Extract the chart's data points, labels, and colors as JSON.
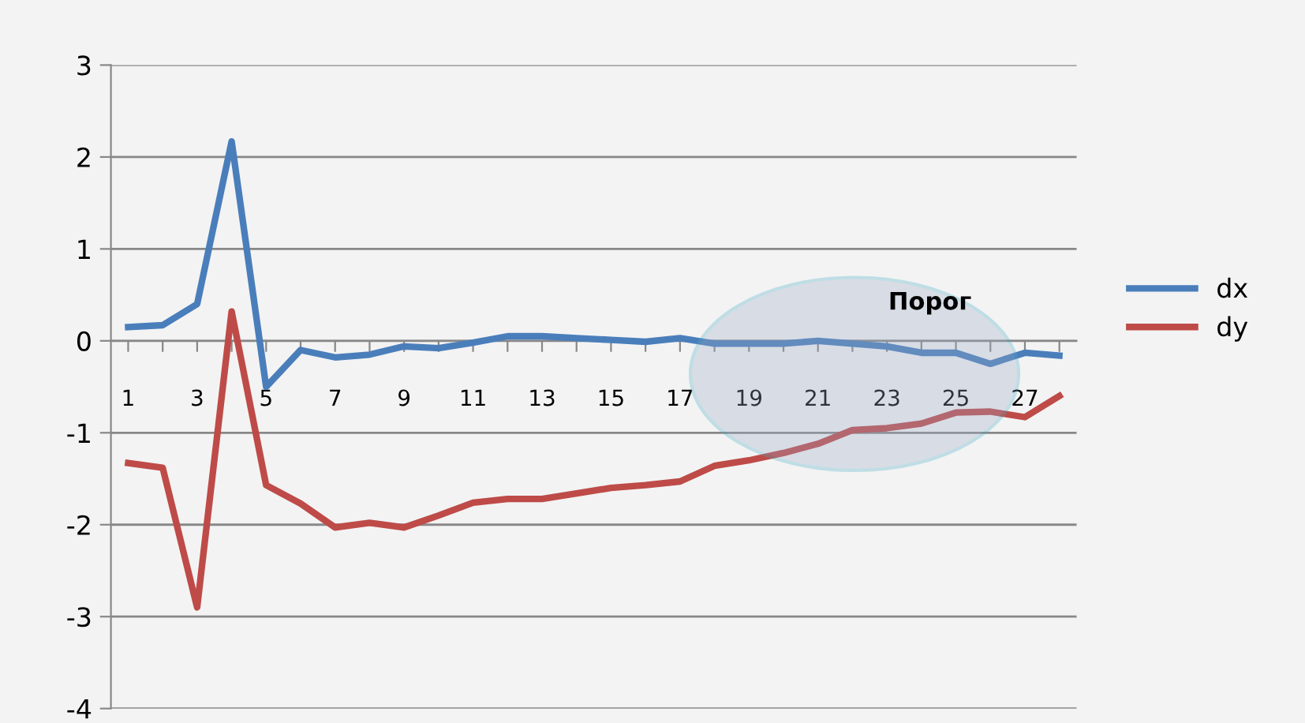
{
  "chart_data": {
    "type": "line",
    "categories": [
      "1",
      null,
      "3",
      null,
      "5",
      null,
      "7",
      null,
      "9",
      null,
      "11",
      null,
      "13",
      null,
      "15",
      null,
      "17",
      null,
      "19",
      null,
      "21",
      null,
      "23",
      null,
      "25",
      null,
      "27",
      null
    ],
    "series": [
      {
        "name": "dx",
        "color": "#4a7ebb",
        "values": [
          0.15,
          0.17,
          0.4,
          2.17,
          -0.5,
          -0.1,
          -0.18,
          -0.15,
          -0.06,
          -0.08,
          -0.02,
          0.05,
          0.05,
          0.03,
          0.01,
          -0.01,
          0.03,
          -0.03,
          -0.03,
          -0.03,
          0.0,
          -0.03,
          -0.06,
          -0.13,
          -0.13,
          -0.25,
          -0.13,
          -0.16
        ]
      },
      {
        "name": "dy",
        "color": "#be4b48",
        "values": [
          -1.33,
          -1.38,
          -2.9,
          0.32,
          -1.57,
          -1.77,
          -2.03,
          -1.98,
          -2.03,
          -1.9,
          -1.76,
          -1.72,
          -1.72,
          -1.66,
          -1.6,
          -1.57,
          -1.53,
          -1.36,
          -1.3,
          -1.22,
          -1.12,
          -0.97,
          -0.95,
          -0.9,
          -0.78,
          -0.77,
          -0.83,
          -0.6
        ]
      }
    ],
    "ylim": [
      -4,
      3
    ],
    "yticks": [
      -4,
      -3,
      -2,
      -1,
      0,
      1,
      2,
      3
    ],
    "grid": "y",
    "legend": "right",
    "marker": "none",
    "line_style": "solid",
    "annotations": [
      "Порог"
    ]
  }
}
